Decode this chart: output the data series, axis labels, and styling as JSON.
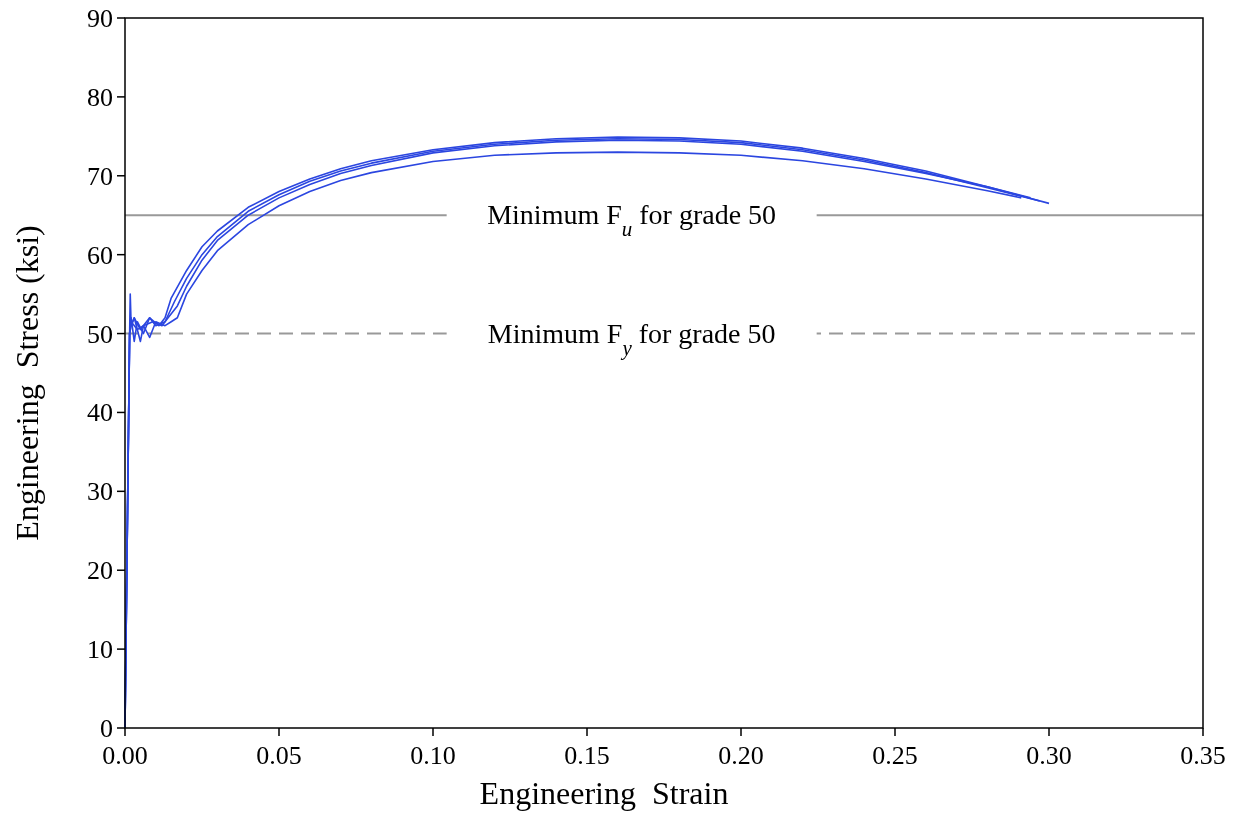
{
  "chart_data": {
    "type": "line",
    "xlabel": "Engineering  Strain",
    "ylabel": "Engineering  Stress (ksi)",
    "xlim": [
      0,
      0.35
    ],
    "ylim": [
      0,
      90
    ],
    "xticks": [
      {
        "value": 0,
        "label": "0.00"
      },
      {
        "value": 0.05,
        "label": "0.05"
      },
      {
        "value": 0.1,
        "label": "0.10"
      },
      {
        "value": 0.15,
        "label": "0.15"
      },
      {
        "value": 0.2,
        "label": "0.20"
      },
      {
        "value": 0.25,
        "label": "0.25"
      },
      {
        "value": 0.3,
        "label": "0.30"
      },
      {
        "value": 0.35,
        "label": "0.35"
      }
    ],
    "yticks": [
      0,
      10,
      20,
      30,
      40,
      50,
      60,
      70,
      80,
      90
    ],
    "grid": false,
    "ref_lines": [
      {
        "axis": "y",
        "value": 65,
        "label": "Minimum  F$_{u}$ for grade 50",
        "color": "#999999",
        "line_style": "solid"
      },
      {
        "axis": "y",
        "value": 50,
        "label": "Minimum  F$_{y}$ for grade 50",
        "color": "#999999",
        "line_style": "dashed"
      }
    ],
    "series": [
      {
        "color": "#2b46e0",
        "x": [
          0,
          0.0015,
          0.0017,
          0.002,
          0.003,
          0.005,
          0.008,
          0.011,
          0.013,
          0.015,
          0.02,
          0.025,
          0.03,
          0.04,
          0.05,
          0.06,
          0.07,
          0.08,
          0.1,
          0.12,
          0.14,
          0.16,
          0.18,
          0.2,
          0.22,
          0.24,
          0.26,
          0.28,
          0.3
        ],
        "values": [
          0,
          50,
          55,
          51,
          52,
          50.5,
          52,
          51,
          52,
          54.5,
          58,
          61,
          63,
          66,
          68,
          69.6,
          70.9,
          71.9,
          73.3,
          74.2,
          74.7,
          74.9,
          74.8,
          74.4,
          73.5,
          72.2,
          70.6,
          68.6,
          66.5
        ]
      },
      {
        "color": "#2b46e0",
        "x": [
          0,
          0.0015,
          0.002,
          0.003,
          0.004,
          0.006,
          0.008,
          0.01,
          0.013,
          0.016,
          0.02,
          0.025,
          0.03,
          0.04,
          0.05,
          0.06,
          0.07,
          0.08,
          0.1,
          0.12,
          0.14,
          0.16,
          0.18,
          0.2,
          0.22,
          0.24,
          0.26,
          0.28,
          0.297
        ],
        "values": [
          0,
          50,
          52,
          49,
          51.5,
          50,
          52,
          51,
          51.5,
          54,
          57,
          60,
          62.3,
          65.5,
          67.6,
          69.3,
          70.6,
          71.6,
          73.1,
          74,
          74.5,
          74.7,
          74.6,
          74.2,
          73.3,
          72,
          70.4,
          68.5,
          66.8
        ]
      },
      {
        "color": "#2b46e0",
        "x": [
          0,
          0.0015,
          0.002,
          0.003,
          0.005,
          0.006,
          0.009,
          0.012,
          0.014,
          0.017,
          0.02,
          0.025,
          0.03,
          0.04,
          0.05,
          0.06,
          0.07,
          0.08,
          0.1,
          0.12,
          0.14,
          0.16,
          0.18,
          0.2,
          0.22,
          0.24,
          0.26,
          0.28,
          0.294
        ],
        "values": [
          0,
          50,
          51,
          52,
          49,
          51,
          51.5,
          51,
          52,
          53.5,
          56,
          59.3,
          61.8,
          65,
          67.2,
          68.9,
          70.3,
          71.3,
          72.9,
          73.8,
          74.3,
          74.5,
          74.4,
          74,
          73.1,
          71.8,
          70.3,
          68.6,
          67.2
        ]
      },
      {
        "color": "#2b46e0",
        "x": [
          0,
          0.0015,
          0.002,
          0.004,
          0.006,
          0.008,
          0.01,
          0.013,
          0.015,
          0.017,
          0.02,
          0.025,
          0.03,
          0.04,
          0.05,
          0.06,
          0.07,
          0.08,
          0.1,
          0.12,
          0.14,
          0.16,
          0.18,
          0.2,
          0.22,
          0.24,
          0.26,
          0.28,
          0.291
        ],
        "values": [
          0,
          50,
          51.5,
          50.5,
          51,
          49.5,
          51.5,
          51,
          51.5,
          52,
          55,
          58,
          60.5,
          63.8,
          66.2,
          68,
          69.4,
          70.4,
          71.8,
          72.6,
          72.9,
          73,
          72.9,
          72.6,
          71.9,
          70.9,
          69.6,
          68.1,
          67.2
        ]
      }
    ]
  }
}
